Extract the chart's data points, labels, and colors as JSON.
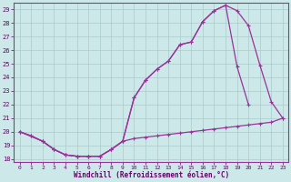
{
  "xlabel": "Windchill (Refroidissement éolien,°C)",
  "bg_color": "#cce8e8",
  "grid_color": "#aacccc",
  "line_color": "#993399",
  "xlim": [
    -0.5,
    23.5
  ],
  "ylim": [
    17.8,
    29.5
  ],
  "yticks": [
    18,
    19,
    20,
    21,
    22,
    23,
    24,
    25,
    26,
    27,
    28,
    29
  ],
  "xticks": [
    0,
    1,
    2,
    3,
    4,
    5,
    6,
    7,
    8,
    9,
    10,
    11,
    12,
    13,
    14,
    15,
    16,
    17,
    18,
    19,
    20,
    21,
    22,
    23
  ],
  "line1_x": [
    0,
    1,
    2,
    3,
    4,
    5,
    6,
    7,
    8,
    9,
    10,
    11,
    12,
    13,
    14,
    15,
    16,
    17,
    18,
    19,
    20,
    21,
    22,
    23
  ],
  "line1_y": [
    20.0,
    19.7,
    19.3,
    18.7,
    18.3,
    18.2,
    18.2,
    18.2,
    18.7,
    19.3,
    19.5,
    19.6,
    19.7,
    19.8,
    19.9,
    20.0,
    20.1,
    20.2,
    20.3,
    20.4,
    20.5,
    20.6,
    20.7,
    21.0
  ],
  "line2_x": [
    0,
    1,
    2,
    3,
    4,
    5,
    6,
    7,
    8,
    9,
    10,
    11,
    12,
    13,
    14,
    15,
    16,
    17,
    18,
    19,
    20,
    21,
    22,
    23
  ],
  "line2_y": [
    20.0,
    19.7,
    19.3,
    18.7,
    18.3,
    18.2,
    18.2,
    18.2,
    18.7,
    19.3,
    22.5,
    23.8,
    24.6,
    25.2,
    26.4,
    26.6,
    28.1,
    28.9,
    29.3,
    28.9,
    27.8,
    24.9,
    22.2,
    21.0
  ],
  "line3_x": [
    0,
    2,
    3,
    4,
    5,
    6,
    7,
    8,
    9,
    10,
    11,
    12,
    13,
    14,
    15,
    16,
    17,
    18,
    19,
    20
  ],
  "line3_y": [
    20.0,
    19.3,
    18.7,
    18.3,
    18.2,
    18.2,
    18.2,
    18.7,
    19.3,
    22.5,
    23.8,
    24.6,
    25.2,
    26.4,
    26.6,
    28.1,
    28.9,
    29.3,
    24.8,
    22.0
  ]
}
